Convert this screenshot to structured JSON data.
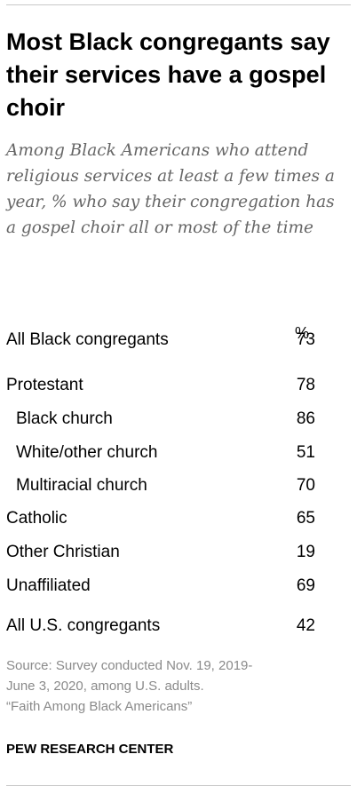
{
  "title": "Most Black congregants say their services have a gospel choir",
  "subtitle": "Among Black Americans who attend religious services at least a few times a year, % who say their congregation has a gospel choir all or most of the time",
  "table_header": "%",
  "source_lines": [
    "Source: Survey conducted Nov. 19, 2019-",
    "June 3, 2020, among U.S. adults.",
    "“Faith Among Black Americans”"
  ],
  "brand": "PEW RESEARCH CENTER",
  "chart_data": {
    "type": "table",
    "title": "Most Black congregants say their services have a gospel choir",
    "columns": [
      "%"
    ],
    "rows": [
      {
        "label": "All Black congregants",
        "value": 73,
        "indent": false
      },
      {
        "label": "Protestant",
        "value": 78,
        "indent": false
      },
      {
        "label": "Black church",
        "value": 86,
        "indent": true
      },
      {
        "label": "White/other church",
        "value": 51,
        "indent": true
      },
      {
        "label": "Multiracial church",
        "value": 70,
        "indent": true
      },
      {
        "label": "Catholic",
        "value": 65,
        "indent": false
      },
      {
        "label": "Other Christian",
        "value": 19,
        "indent": false
      },
      {
        "label": "Unaffiliated",
        "value": 69,
        "indent": false
      },
      {
        "label": "All U.S. congregants",
        "value": 42,
        "indent": false
      }
    ]
  }
}
